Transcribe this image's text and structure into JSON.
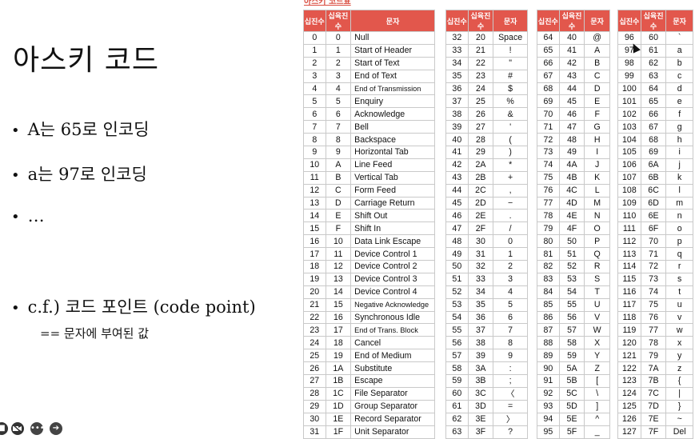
{
  "slide": {
    "title": "아스키 코드",
    "bullets": [
      {
        "dot": "•",
        "text": "A는 65로 인코딩"
      },
      {
        "dot": "•",
        "text": "a는 97로 인코딩"
      },
      {
        "dot": "•",
        "text": "…"
      },
      {
        "dot": "•",
        "text": "c.f.) 코드 포인트 (code point)"
      }
    ],
    "sub_bullet": "== 문자에 부여된 값"
  },
  "table_caption": "아스키 코드표",
  "headers": [
    "십진수",
    "십육진수",
    "문자"
  ],
  "table1": [
    [
      "0",
      "0",
      "Null"
    ],
    [
      "1",
      "1",
      "Start of Header"
    ],
    [
      "2",
      "2",
      "Start of Text"
    ],
    [
      "3",
      "3",
      "End of Text"
    ],
    [
      "4",
      "4",
      "End of Transmission"
    ],
    [
      "5",
      "5",
      "Enquiry"
    ],
    [
      "6",
      "6",
      "Acknowledge"
    ],
    [
      "7",
      "7",
      "Bell"
    ],
    [
      "8",
      "8",
      "Backspace"
    ],
    [
      "9",
      "9",
      "Horizontal Tab"
    ],
    [
      "10",
      "A",
      "Line Feed"
    ],
    [
      "11",
      "B",
      "Vertical Tab"
    ],
    [
      "12",
      "C",
      "Form Feed"
    ],
    [
      "13",
      "D",
      "Carriage Return"
    ],
    [
      "14",
      "E",
      "Shift Out"
    ],
    [
      "15",
      "F",
      "Shift In"
    ],
    [
      "16",
      "10",
      "Data Link Escape"
    ],
    [
      "17",
      "11",
      "Device Control 1"
    ],
    [
      "18",
      "12",
      "Device Control 2"
    ],
    [
      "19",
      "13",
      "Device Control 3"
    ],
    [
      "20",
      "14",
      "Device Control 4"
    ],
    [
      "21",
      "15",
      "Negative Acknowledge"
    ],
    [
      "22",
      "16",
      "Synchronous Idle"
    ],
    [
      "23",
      "17",
      "End of Trans. Block"
    ],
    [
      "24",
      "18",
      "Cancel"
    ],
    [
      "25",
      "19",
      "End of Medium"
    ],
    [
      "26",
      "1A",
      "Substitute"
    ],
    [
      "27",
      "1B",
      "Escape"
    ],
    [
      "28",
      "1C",
      "File Separator"
    ],
    [
      "29",
      "1D",
      "Group Separator"
    ],
    [
      "30",
      "1E",
      "Record Separator"
    ],
    [
      "31",
      "1F",
      "Unit Separator"
    ]
  ],
  "table2": [
    [
      "32",
      "20",
      "Space"
    ],
    [
      "33",
      "21",
      "!"
    ],
    [
      "34",
      "22",
      "\""
    ],
    [
      "35",
      "23",
      "#"
    ],
    [
      "36",
      "24",
      "$"
    ],
    [
      "37",
      "25",
      "%"
    ],
    [
      "38",
      "26",
      "&"
    ],
    [
      "39",
      "27",
      "'"
    ],
    [
      "40",
      "28",
      "("
    ],
    [
      "41",
      "29",
      ")"
    ],
    [
      "42",
      "2A",
      "*"
    ],
    [
      "43",
      "2B",
      "+"
    ],
    [
      "44",
      "2C",
      ","
    ],
    [
      "45",
      "2D",
      "−"
    ],
    [
      "46",
      "2E",
      "."
    ],
    [
      "47",
      "2F",
      "/"
    ],
    [
      "48",
      "30",
      "0"
    ],
    [
      "49",
      "31",
      "1"
    ],
    [
      "50",
      "32",
      "2"
    ],
    [
      "51",
      "33",
      "3"
    ],
    [
      "52",
      "34",
      "4"
    ],
    [
      "53",
      "35",
      "5"
    ],
    [
      "54",
      "36",
      "6"
    ],
    [
      "55",
      "37",
      "7"
    ],
    [
      "56",
      "38",
      "8"
    ],
    [
      "57",
      "39",
      "9"
    ],
    [
      "58",
      "3A",
      ":"
    ],
    [
      "59",
      "3B",
      ";"
    ],
    [
      "60",
      "3C",
      "〈"
    ],
    [
      "61",
      "3D",
      "="
    ],
    [
      "62",
      "3E",
      "〉"
    ],
    [
      "63",
      "3F",
      "?"
    ]
  ],
  "table3": [
    [
      "64",
      "40",
      "@"
    ],
    [
      "65",
      "41",
      "A"
    ],
    [
      "66",
      "42",
      "B"
    ],
    [
      "67",
      "43",
      "C"
    ],
    [
      "68",
      "44",
      "D"
    ],
    [
      "69",
      "45",
      "E"
    ],
    [
      "70",
      "46",
      "F"
    ],
    [
      "71",
      "47",
      "G"
    ],
    [
      "72",
      "48",
      "H"
    ],
    [
      "73",
      "49",
      "I"
    ],
    [
      "74",
      "4A",
      "J"
    ],
    [
      "75",
      "4B",
      "K"
    ],
    [
      "76",
      "4C",
      "L"
    ],
    [
      "77",
      "4D",
      "M"
    ],
    [
      "78",
      "4E",
      "N"
    ],
    [
      "79",
      "4F",
      "O"
    ],
    [
      "80",
      "50",
      "P"
    ],
    [
      "81",
      "51",
      "Q"
    ],
    [
      "82",
      "52",
      "R"
    ],
    [
      "83",
      "53",
      "S"
    ],
    [
      "84",
      "54",
      "T"
    ],
    [
      "85",
      "55",
      "U"
    ],
    [
      "86",
      "56",
      "V"
    ],
    [
      "87",
      "57",
      "W"
    ],
    [
      "88",
      "58",
      "X"
    ],
    [
      "89",
      "59",
      "Y"
    ],
    [
      "90",
      "5A",
      "Z"
    ],
    [
      "91",
      "5B",
      "["
    ],
    [
      "92",
      "5C",
      "\\"
    ],
    [
      "93",
      "5D",
      "]"
    ],
    [
      "94",
      "5E",
      "^"
    ],
    [
      "95",
      "5F",
      "_"
    ]
  ],
  "table4": [
    [
      "96",
      "60",
      "`"
    ],
    [
      "97",
      "61",
      "a"
    ],
    [
      "98",
      "62",
      "b"
    ],
    [
      "99",
      "63",
      "c"
    ],
    [
      "100",
      "64",
      "d"
    ],
    [
      "101",
      "65",
      "e"
    ],
    [
      "102",
      "66",
      "f"
    ],
    [
      "103",
      "67",
      "g"
    ],
    [
      "104",
      "68",
      "h"
    ],
    [
      "105",
      "69",
      "i"
    ],
    [
      "106",
      "6A",
      "j"
    ],
    [
      "107",
      "6B",
      "k"
    ],
    [
      "108",
      "6C",
      "l"
    ],
    [
      "109",
      "6D",
      "m"
    ],
    [
      "110",
      "6E",
      "n"
    ],
    [
      "111",
      "6F",
      "o"
    ],
    [
      "112",
      "70",
      "p"
    ],
    [
      "113",
      "71",
      "q"
    ],
    [
      "114",
      "72",
      "r"
    ],
    [
      "115",
      "73",
      "s"
    ],
    [
      "116",
      "74",
      "t"
    ],
    [
      "117",
      "75",
      "u"
    ],
    [
      "118",
      "76",
      "v"
    ],
    [
      "119",
      "77",
      "w"
    ],
    [
      "120",
      "78",
      "x"
    ],
    [
      "121",
      "79",
      "y"
    ],
    [
      "122",
      "7A",
      "z"
    ],
    [
      "123",
      "7B",
      "{"
    ],
    [
      "124",
      "7C",
      "|"
    ],
    [
      "125",
      "7D",
      "}"
    ],
    [
      "126",
      "7E",
      "~"
    ],
    [
      "127",
      "7F",
      "Del"
    ]
  ],
  "toolbar": {
    "icons": [
      "video-off-icon",
      "more-icon",
      "next-icon"
    ]
  }
}
